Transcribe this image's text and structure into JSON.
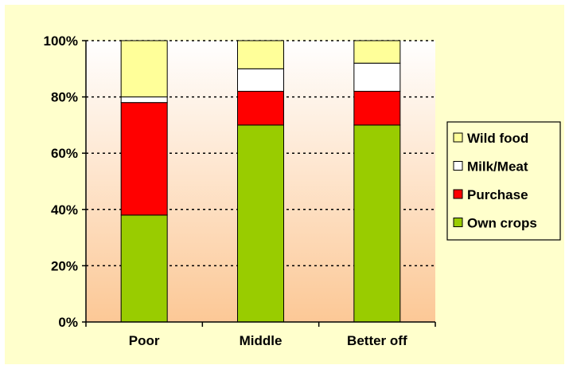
{
  "chart_data": {
    "type": "bar",
    "stacked": true,
    "categories": [
      "Poor",
      "Middle",
      "Better off"
    ],
    "series": [
      {
        "name": "Own crops",
        "values": [
          38,
          70,
          70
        ],
        "color": "#99cc00"
      },
      {
        "name": "Purchase",
        "values": [
          40,
          12,
          12
        ],
        "color": "#ff0000"
      },
      {
        "name": "Milk/Meat",
        "values": [
          2,
          8,
          10
        ],
        "color": "#ffffff"
      },
      {
        "name": "Wild food",
        "values": [
          20,
          10,
          8
        ],
        "color": "#ffff99"
      }
    ],
    "yticks": [
      "0%",
      "20%",
      "40%",
      "60%",
      "80%",
      "100%"
    ],
    "ylim": [
      0,
      100
    ],
    "grid": true,
    "legend_position": "right",
    "plot_background": "gradient white-to-peach",
    "chart_background": "#ffffcc"
  }
}
